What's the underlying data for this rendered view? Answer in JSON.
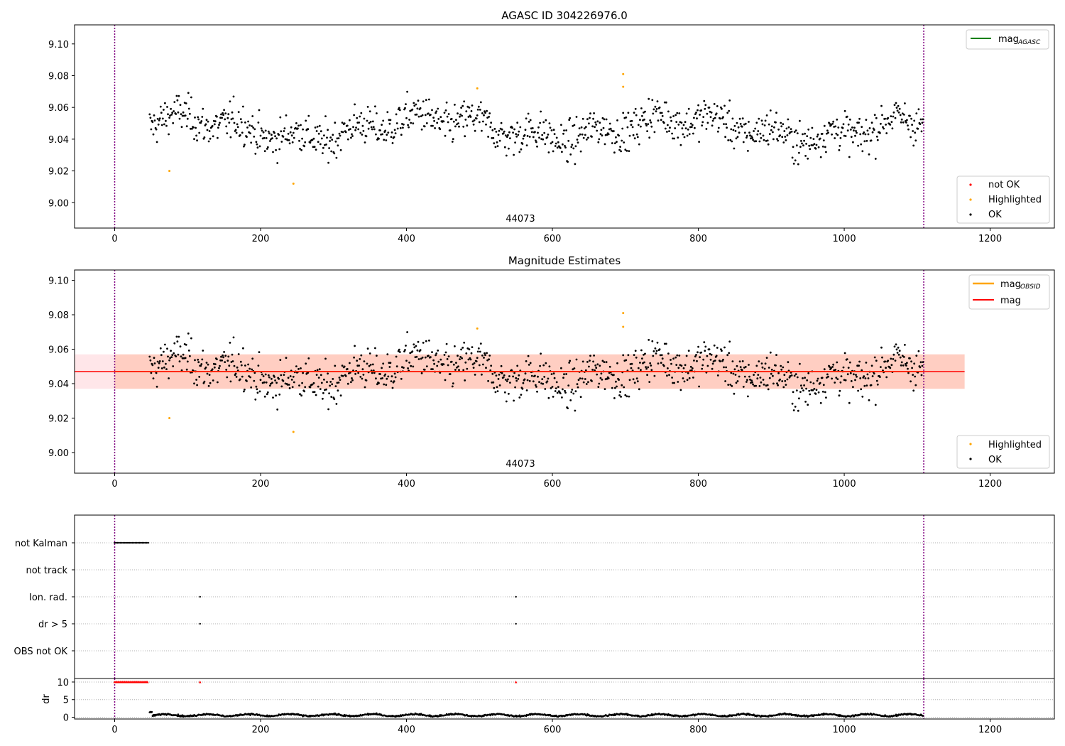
{
  "chart_data": [
    {
      "type": "scatter",
      "title": "AGASC ID 304226976.0",
      "annotation": "44073",
      "xlim": [
        -55,
        1288
      ],
      "ylim": [
        8.984,
        9.112
      ],
      "xticks": [
        0,
        200,
        400,
        600,
        800,
        1000,
        1200
      ],
      "yticks": [
        9.0,
        9.02,
        9.04,
        9.06,
        9.08,
        9.1
      ],
      "vlines": [
        0,
        1109
      ],
      "legend_line": {
        "label": "mag",
        "sub": "AGASC",
        "color": "#008000",
        "position": "top-right"
      },
      "legend_points": {
        "position": "bottom-right",
        "items": [
          {
            "label": "not OK",
            "color": "#ff0000"
          },
          {
            "label": "Highlighted",
            "color": "#ffa500"
          },
          {
            "label": "OK",
            "color": "#000000"
          }
        ]
      },
      "data_summary": {
        "x_range": [
          48,
          1108
        ],
        "y_range": [
          9.022,
          9.072
        ],
        "mean": 9.047
      },
      "highlighted_points": [
        [
          75,
          9.02
        ],
        [
          245,
          9.012
        ],
        [
          497,
          9.072
        ],
        [
          697,
          9.081
        ],
        [
          697,
          9.073
        ]
      ]
    },
    {
      "type": "scatter",
      "title": "Magnitude Estimates",
      "annotation": "44073",
      "xlim": [
        -55,
        1288
      ],
      "ylim": [
        8.988,
        9.106
      ],
      "xticks": [
        0,
        200,
        400,
        600,
        800,
        1000,
        1200
      ],
      "yticks": [
        9.0,
        9.02,
        9.04,
        9.06,
        9.08,
        9.1
      ],
      "vlines": [
        0,
        1109
      ],
      "mag": 9.047,
      "mag_band": [
        9.037,
        9.057
      ],
      "mag_obsid_band_x": [
        0,
        1165
      ],
      "legend_lines": {
        "position": "top-right",
        "items": [
          {
            "label": "mag",
            "sub": "OBSID",
            "color": "#ffa500"
          },
          {
            "label": "mag",
            "sub": "",
            "color": "#ff0000"
          }
        ]
      },
      "legend_points": {
        "position": "bottom-right",
        "items": [
          {
            "label": "Highlighted",
            "color": "#ffa500"
          },
          {
            "label": "OK",
            "color": "#000000"
          }
        ]
      }
    },
    {
      "type": "scatter",
      "title": "",
      "categories": [
        "not Kalman",
        "not track",
        "Ion. rad.",
        "dr > 5",
        "OBS not OK"
      ],
      "flags": {
        "not Kalman": [
          [
            0,
            46
          ]
        ],
        "not track": [],
        "Ion. rad.": [
          117,
          550
        ],
        "dr > 5": [
          117,
          550
        ],
        "OBS not OK": []
      },
      "xlim": [
        -55,
        1288
      ]
    },
    {
      "type": "scatter",
      "ylabel": "dr",
      "xlim": [
        -55,
        1288
      ],
      "ylim": [
        -0.5,
        11
      ],
      "yticks": [
        0,
        5,
        10
      ],
      "xticks": [
        0,
        200,
        400,
        600,
        800,
        1000,
        1200
      ],
      "vlines": [
        0,
        1109
      ],
      "clipped_points_at": 10,
      "clipped_x": [
        [
          0,
          46
        ],
        117,
        550
      ],
      "data_summary": {
        "x_range": [
          48,
          1108
        ],
        "y_range": [
          0,
          1.6
        ]
      }
    }
  ]
}
